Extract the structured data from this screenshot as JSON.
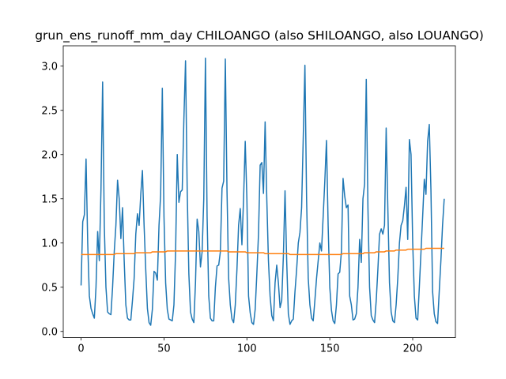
{
  "chart_data": {
    "type": "line",
    "title": "grun_ens_runoff_mm_day CHILOANGO (also SHILOANGO, also LOUANGO)",
    "xlabel": "",
    "ylabel": "",
    "xlim": [
      -10.75,
      225.75
    ],
    "ylim": [
      -0.07,
      3.23
    ],
    "grid": false,
    "x_ticks": [
      0,
      50,
      100,
      150,
      200
    ],
    "y_ticks": [
      0.0,
      0.5,
      1.0,
      1.5,
      2.0,
      2.5,
      3.0
    ],
    "x_tick_labels": [
      "0",
      "50",
      "100",
      "150",
      "200"
    ],
    "y_tick_labels": [
      "0.0",
      "0.5",
      "1.0",
      "1.5",
      "2.0",
      "2.5",
      "3.0"
    ],
    "series": [
      {
        "color": "#1f77b4",
        "values": [
          0.52,
          1.24,
          1.32,
          1.95,
          1.0,
          0.4,
          0.26,
          0.2,
          0.15,
          0.5,
          1.13,
          0.8,
          1.6,
          2.82,
          1.2,
          0.5,
          0.22,
          0.2,
          0.19,
          0.5,
          0.9,
          1.2,
          1.71,
          1.5,
          1.05,
          1.4,
          0.8,
          0.3,
          0.15,
          0.13,
          0.13,
          0.35,
          0.6,
          1.1,
          1.33,
          1.2,
          1.55,
          1.82,
          1.2,
          0.7,
          0.26,
          0.1,
          0.07,
          0.25,
          0.68,
          0.66,
          0.58,
          1.2,
          1.55,
          2.75,
          1.3,
          0.55,
          0.25,
          0.14,
          0.13,
          0.12,
          0.3,
          0.9,
          2.0,
          1.46,
          1.58,
          1.6,
          2.4,
          3.06,
          1.6,
          0.65,
          0.22,
          0.14,
          0.1,
          0.55,
          1.27,
          1.13,
          0.73,
          0.9,
          1.5,
          3.09,
          1.3,
          0.4,
          0.15,
          0.12,
          0.12,
          0.5,
          0.74,
          0.75,
          0.9,
          1.62,
          1.7,
          3.08,
          1.6,
          0.6,
          0.3,
          0.14,
          0.1,
          0.3,
          0.7,
          1.2,
          1.39,
          0.98,
          1.5,
          2.15,
          1.5,
          0.4,
          0.21,
          0.1,
          0.08,
          0.25,
          0.65,
          1.1,
          1.88,
          1.91,
          1.56,
          2.37,
          1.5,
          0.8,
          0.4,
          0.18,
          0.12,
          0.55,
          0.75,
          0.55,
          0.27,
          0.35,
          0.85,
          1.59,
          0.8,
          0.2,
          0.08,
          0.12,
          0.14,
          0.45,
          0.7,
          1.0,
          1.12,
          1.4,
          2.2,
          3.01,
          1.5,
          0.6,
          0.3,
          0.15,
          0.12,
          0.35,
          0.6,
          0.8,
          1.0,
          0.91,
          1.3,
          1.7,
          2.16,
          1.2,
          0.5,
          0.24,
          0.12,
          0.09,
          0.3,
          0.65,
          0.67,
          0.9,
          1.73,
          1.53,
          1.4,
          1.43,
          0.4,
          0.3,
          0.13,
          0.14,
          0.2,
          0.5,
          1.04,
          0.78,
          1.5,
          1.67,
          2.85,
          1.4,
          0.5,
          0.18,
          0.13,
          0.1,
          0.35,
          0.7,
          1.1,
          1.16,
          1.1,
          1.2,
          2.3,
          1.4,
          0.55,
          0.22,
          0.12,
          0.1,
          0.3,
          0.6,
          1.0,
          1.2,
          1.25,
          1.42,
          1.63,
          1.04,
          2.17,
          2.0,
          1.0,
          0.4,
          0.15,
          0.13,
          0.5,
          0.9,
          1.3,
          1.72,
          1.55,
          2.15,
          2.34,
          1.6,
          0.45,
          0.2,
          0.11,
          0.09,
          0.45,
          0.8,
          1.2,
          1.5
        ]
      },
      {
        "color": "#ff7f0e",
        "values": [
          0.87,
          0.87,
          0.87,
          0.87,
          0.87,
          0.87,
          0.87,
          0.87,
          0.87,
          0.87,
          0.87,
          0.87,
          0.87,
          0.87,
          0.87,
          0.87,
          0.87,
          0.87,
          0.87,
          0.87,
          0.87,
          0.88,
          0.88,
          0.88,
          0.88,
          0.88,
          0.88,
          0.88,
          0.88,
          0.88,
          0.88,
          0.88,
          0.88,
          0.89,
          0.89,
          0.89,
          0.89,
          0.89,
          0.89,
          0.89,
          0.89,
          0.89,
          0.89,
          0.9,
          0.9,
          0.9,
          0.9,
          0.9,
          0.9,
          0.9,
          0.9,
          0.9,
          0.91,
          0.91,
          0.91,
          0.91,
          0.91,
          0.91,
          0.91,
          0.91,
          0.91,
          0.91,
          0.91,
          0.91,
          0.91,
          0.91,
          0.91,
          0.91,
          0.91,
          0.91,
          0.91,
          0.91,
          0.91,
          0.91,
          0.91,
          0.91,
          0.91,
          0.91,
          0.91,
          0.91,
          0.91,
          0.91,
          0.91,
          0.91,
          0.91,
          0.91,
          0.91,
          0.91,
          0.91,
          0.9,
          0.9,
          0.9,
          0.9,
          0.9,
          0.9,
          0.9,
          0.9,
          0.9,
          0.9,
          0.9,
          0.89,
          0.89,
          0.89,
          0.89,
          0.89,
          0.89,
          0.89,
          0.89,
          0.89,
          0.89,
          0.89,
          0.88,
          0.88,
          0.88,
          0.88,
          0.88,
          0.88,
          0.88,
          0.88,
          0.88,
          0.88,
          0.88,
          0.88,
          0.88,
          0.88,
          0.88,
          0.87,
          0.87,
          0.87,
          0.87,
          0.87,
          0.87,
          0.87,
          0.87,
          0.87,
          0.87,
          0.87,
          0.87,
          0.87,
          0.87,
          0.87,
          0.87,
          0.87,
          0.87,
          0.87,
          0.87,
          0.87,
          0.87,
          0.87,
          0.87,
          0.87,
          0.87,
          0.87,
          0.87,
          0.87,
          0.87,
          0.87,
          0.87,
          0.88,
          0.88,
          0.88,
          0.88,
          0.88,
          0.88,
          0.88,
          0.88,
          0.88,
          0.88,
          0.88,
          0.88,
          0.88,
          0.89,
          0.89,
          0.89,
          0.89,
          0.89,
          0.89,
          0.89,
          0.9,
          0.9,
          0.9,
          0.9,
          0.9,
          0.9,
          0.91,
          0.91,
          0.91,
          0.91,
          0.91,
          0.91,
          0.92,
          0.92,
          0.92,
          0.92,
          0.92,
          0.92,
          0.92,
          0.93,
          0.93,
          0.93,
          0.93,
          0.93,
          0.93,
          0.93,
          0.93,
          0.93,
          0.93,
          0.93,
          0.94,
          0.94,
          0.94,
          0.94,
          0.94,
          0.94,
          0.94,
          0.94,
          0.94,
          0.94,
          0.94,
          0.94
        ]
      }
    ]
  }
}
